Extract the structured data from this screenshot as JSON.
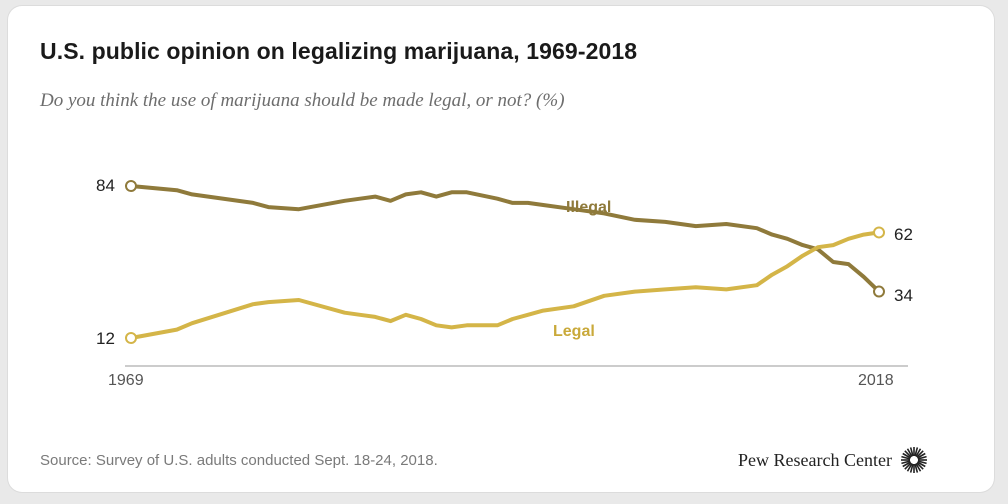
{
  "chart_data": {
    "type": "line",
    "title": "U.S. public opinion on legalizing marijuana, 1969-2018",
    "subtitle": "Do you think the use of marijuana should be made legal, or not? (%)",
    "x_tick_labels": [
      "1969",
      "2018"
    ],
    "xlim": [
      1969,
      2018
    ],
    "ylim": [
      0,
      100
    ],
    "grid": false,
    "series": [
      {
        "name": "Illegal",
        "color": "#8f7a3b",
        "x": [
          1969,
          1972,
          1973,
          1977,
          1978,
          1980,
          1983,
          1984,
          1985,
          1986,
          1987,
          1988,
          1989,
          1990,
          1991,
          1993,
          1994,
          1995,
          1996,
          1998,
          2000,
          2002,
          2004,
          2006,
          2008,
          2010,
          2011,
          2012,
          2013,
          2014,
          2015,
          2016,
          2017,
          2018
        ],
        "y": [
          84,
          82,
          80,
          76,
          74,
          73,
          77,
          78,
          79,
          77,
          80,
          81,
          79,
          81,
          81,
          78,
          76,
          76,
          75,
          73,
          71,
          68,
          67,
          65,
          66,
          64,
          61,
          59,
          56,
          54,
          48,
          47,
          41,
          34
        ]
      },
      {
        "name": "Legal",
        "color": "#d4b548",
        "x": [
          1969,
          1972,
          1973,
          1977,
          1978,
          1980,
          1983,
          1984,
          1985,
          1986,
          1987,
          1988,
          1989,
          1990,
          1991,
          1993,
          1994,
          1995,
          1996,
          1998,
          2000,
          2002,
          2004,
          2006,
          2008,
          2010,
          2011,
          2012,
          2013,
          2014,
          2015,
          2016,
          2017,
          2018
        ],
        "y": [
          12,
          16,
          19,
          28,
          29,
          30,
          24,
          23,
          22,
          20,
          23,
          21,
          18,
          17,
          18,
          18,
          21,
          23,
          25,
          27,
          32,
          34,
          35,
          36,
          35,
          37,
          42,
          46,
          51,
          55,
          56,
          59,
          61,
          62
        ]
      }
    ],
    "annotations": {
      "illegal_start": "84",
      "legal_start": "12",
      "illegal_end": "34",
      "legal_end": "62",
      "illegal_label": "Illegal",
      "legal_label": "Legal"
    }
  },
  "footer": {
    "source": "Source: Survey of U.S. adults conducted Sept. 18-24, 2018.",
    "brand": "Pew Research Center"
  }
}
